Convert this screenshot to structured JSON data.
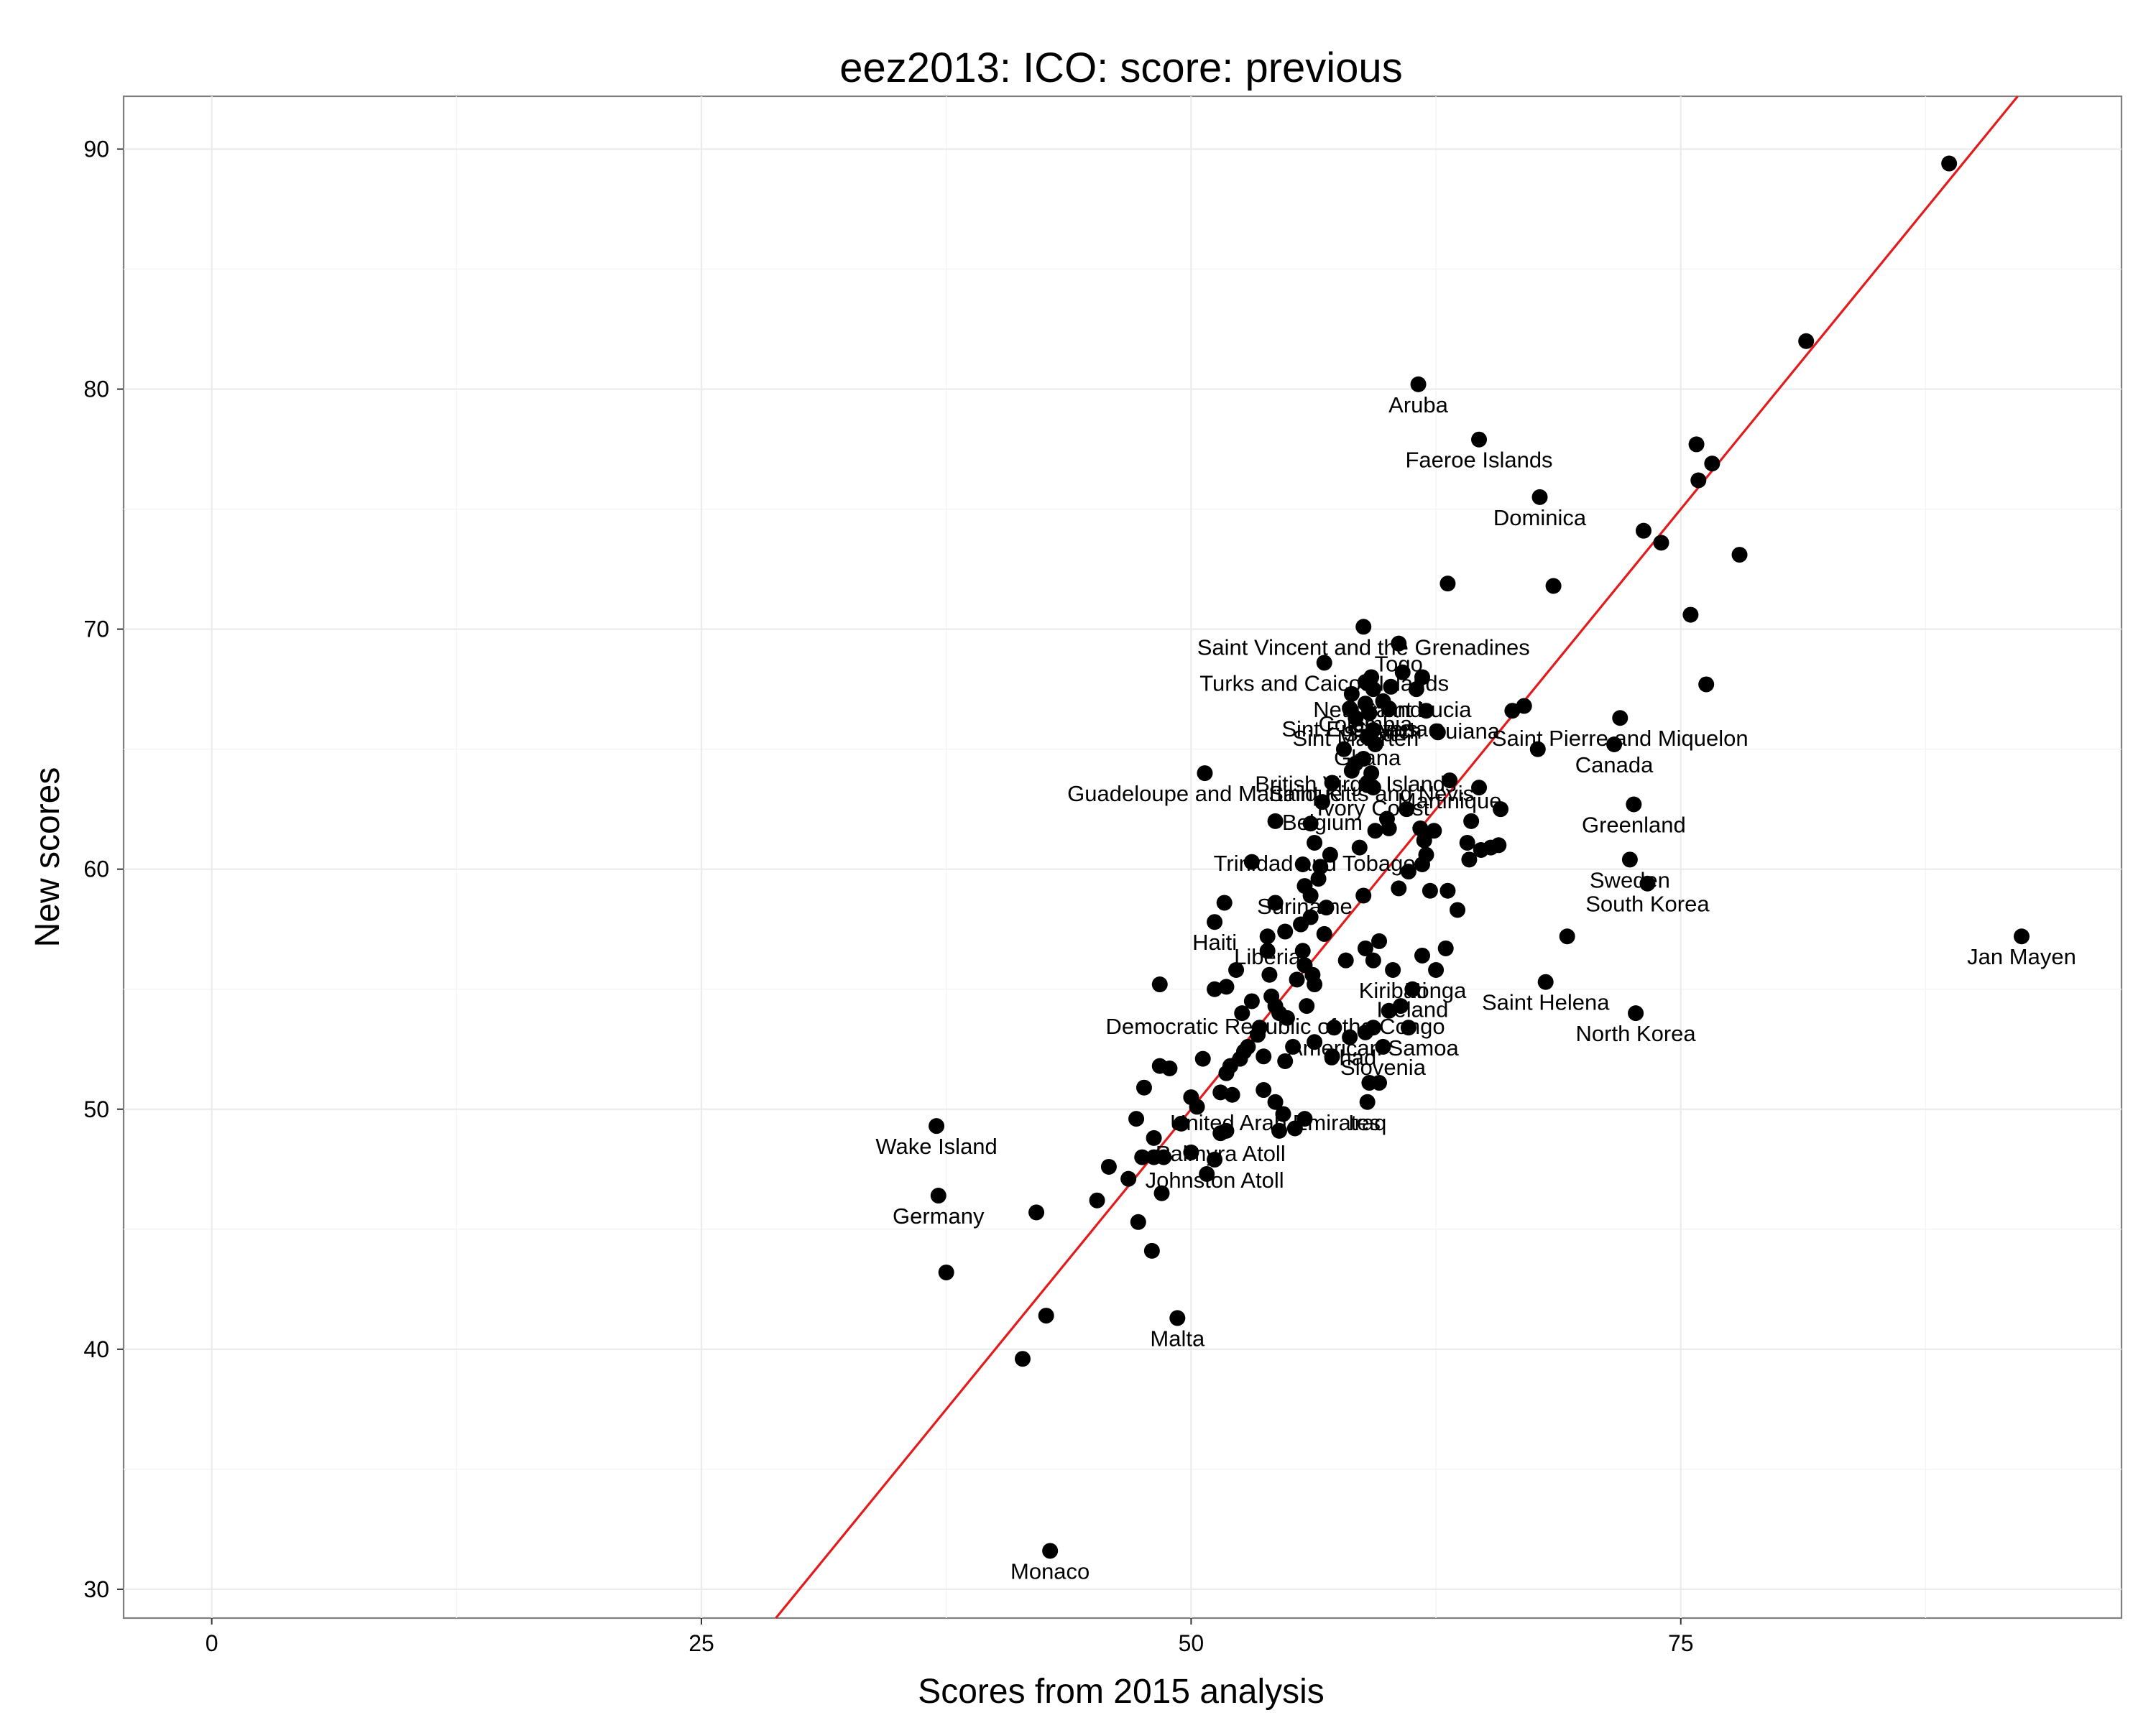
{
  "chart_data": {
    "type": "scatter",
    "title": "eez2013: ICO: score: previous",
    "xlabel": "Scores from 2015 analysis",
    "ylabel": "New scores",
    "xlim": [
      -4.5,
      97.5
    ],
    "ylim": [
      28.8,
      92.2
    ],
    "xticks": [
      0,
      25,
      50,
      75
    ],
    "yticks": [
      30,
      40,
      50,
      60,
      70,
      80,
      90
    ],
    "grid": true,
    "reference_line": {
      "color": "#e41a1c",
      "slope": 1,
      "intercept": 0
    },
    "points": [
      {
        "x": 88.7,
        "y": 89.4
      },
      {
        "x": 81.4,
        "y": 82.0
      },
      {
        "x": 61.6,
        "y": 80.2,
        "label": "Aruba"
      },
      {
        "x": 64.7,
        "y": 77.9,
        "label": "Faeroe Islands"
      },
      {
        "x": 75.8,
        "y": 77.7
      },
      {
        "x": 76.6,
        "y": 76.9
      },
      {
        "x": 75.9,
        "y": 76.2
      },
      {
        "x": 67.8,
        "y": 75.5,
        "label": "Dominica"
      },
      {
        "x": 73.1,
        "y": 74.1
      },
      {
        "x": 74.0,
        "y": 73.6
      },
      {
        "x": 78.0,
        "y": 73.1
      },
      {
        "x": 63.1,
        "y": 71.9
      },
      {
        "x": 68.5,
        "y": 71.8
      },
      {
        "x": 75.5,
        "y": 70.6
      },
      {
        "x": 58.8,
        "y": 70.1,
        "label": "Saint Vincent and the Grenadines"
      },
      {
        "x": 60.6,
        "y": 69.4,
        "label": "Togo"
      },
      {
        "x": 56.8,
        "y": 68.6,
        "label": "Turks and Caicos Islands"
      },
      {
        "x": 60.8,
        "y": 68.2
      },
      {
        "x": 59.2,
        "y": 68.0
      },
      {
        "x": 61.8,
        "y": 68.0
      },
      {
        "x": 58.9,
        "y": 67.8
      },
      {
        "x": 59.3,
        "y": 67.5,
        "label": "Netherlands"
      },
      {
        "x": 60.2,
        "y": 67.6
      },
      {
        "x": 61.5,
        "y": 67.5,
        "label": "Saint Lucia"
      },
      {
        "x": 76.3,
        "y": 67.7
      },
      {
        "x": 58.2,
        "y": 67.3
      },
      {
        "x": 59.8,
        "y": 67.0
      },
      {
        "x": 58.9,
        "y": 66.9,
        "label": "Colombia"
      },
      {
        "x": 60.1,
        "y": 66.7,
        "label": "Guyana"
      },
      {
        "x": 62.0,
        "y": 66.6,
        "label": "French Guiana"
      },
      {
        "x": 58.1,
        "y": 66.7,
        "label": "Sint Eustatius"
      },
      {
        "x": 59.1,
        "y": 66.5,
        "label": "Saba"
      },
      {
        "x": 58.4,
        "y": 66.3,
        "label": "Sint Maarten"
      },
      {
        "x": 66.4,
        "y": 66.6
      },
      {
        "x": 67.0,
        "y": 66.8
      },
      {
        "x": 71.9,
        "y": 66.3,
        "label": "Saint Pierre and Miquelon"
      },
      {
        "x": 59.3,
        "y": 65.8
      },
      {
        "x": 62.6,
        "y": 65.7
      },
      {
        "x": 59.0,
        "y": 65.5,
        "label": "Ghana"
      },
      {
        "x": 59.4,
        "y": 65.2
      },
      {
        "x": 67.7,
        "y": 65.0
      },
      {
        "x": 71.6,
        "y": 65.2,
        "label": "Canada"
      },
      {
        "x": 57.8,
        "y": 65.0
      },
      {
        "x": 58.8,
        "y": 64.6
      },
      {
        "x": 58.4,
        "y": 64.4,
        "label": "British Virgin Islands"
      },
      {
        "x": 50.7,
        "y": 64.0,
        "label": "Guadeloupe and Martinique"
      },
      {
        "x": 58.2,
        "y": 64.1
      },
      {
        "x": 59.2,
        "y": 64.0,
        "label": "Saint Kitts and Nevis"
      },
      {
        "x": 59.0,
        "y": 63.6
      },
      {
        "x": 63.2,
        "y": 63.7,
        "label": "Martinique"
      },
      {
        "x": 59.3,
        "y": 63.4,
        "label": "Ivory Coast"
      },
      {
        "x": 57.2,
        "y": 63.6
      },
      {
        "x": 59.0,
        "y": 63.5
      },
      {
        "x": 64.7,
        "y": 63.4
      },
      {
        "x": 56.7,
        "y": 62.8,
        "label": "Belgium"
      },
      {
        "x": 61.0,
        "y": 62.5
      },
      {
        "x": 65.8,
        "y": 62.5
      },
      {
        "x": 72.6,
        "y": 62.7,
        "label": "Greenland"
      },
      {
        "x": 60.0,
        "y": 62.1
      },
      {
        "x": 64.3,
        "y": 62.0
      },
      {
        "x": 54.3,
        "y": 62.0
      },
      {
        "x": 56.1,
        "y": 61.9
      },
      {
        "x": 59.4,
        "y": 61.6
      },
      {
        "x": 60.1,
        "y": 61.7
      },
      {
        "x": 61.7,
        "y": 61.7
      },
      {
        "x": 62.4,
        "y": 61.6
      },
      {
        "x": 61.9,
        "y": 61.2
      },
      {
        "x": 56.3,
        "y": 61.1,
        "label": "Trinidad and Tobago"
      },
      {
        "x": 58.6,
        "y": 60.9
      },
      {
        "x": 64.1,
        "y": 61.1
      },
      {
        "x": 64.8,
        "y": 60.8
      },
      {
        "x": 65.3,
        "y": 60.9
      },
      {
        "x": 65.7,
        "y": 61.0
      },
      {
        "x": 62.0,
        "y": 60.6
      },
      {
        "x": 61.8,
        "y": 60.2
      },
      {
        "x": 64.2,
        "y": 60.4
      },
      {
        "x": 72.4,
        "y": 60.4,
        "label": "Sweden"
      },
      {
        "x": 57.1,
        "y": 60.6
      },
      {
        "x": 55.7,
        "y": 60.2
      },
      {
        "x": 56.6,
        "y": 60.1
      },
      {
        "x": 53.1,
        "y": 60.3
      },
      {
        "x": 61.1,
        "y": 59.9
      },
      {
        "x": 55.8,
        "y": 59.3,
        "label": "Suriname"
      },
      {
        "x": 56.5,
        "y": 59.6
      },
      {
        "x": 73.3,
        "y": 59.4,
        "label": "South Korea"
      },
      {
        "x": 60.6,
        "y": 59.2
      },
      {
        "x": 62.2,
        "y": 59.1
      },
      {
        "x": 63.1,
        "y": 59.1
      },
      {
        "x": 56.1,
        "y": 58.9
      },
      {
        "x": 58.8,
        "y": 58.9
      },
      {
        "x": 51.7,
        "y": 58.6
      },
      {
        "x": 54.3,
        "y": 58.6
      },
      {
        "x": 56.9,
        "y": 58.4
      },
      {
        "x": 63.6,
        "y": 58.3
      },
      {
        "x": 56.1,
        "y": 58.0
      },
      {
        "x": 51.2,
        "y": 57.8,
        "label": "Haiti"
      },
      {
        "x": 55.6,
        "y": 57.7
      },
      {
        "x": 54.8,
        "y": 57.4
      },
      {
        "x": 56.8,
        "y": 57.3
      },
      {
        "x": 53.9,
        "y": 57.2,
        "label": "Liberia"
      },
      {
        "x": 69.2,
        "y": 57.2
      },
      {
        "x": 92.4,
        "y": 57.2,
        "label": "Jan Mayen"
      },
      {
        "x": 59.6,
        "y": 57.0
      },
      {
        "x": 53.9,
        "y": 56.6
      },
      {
        "x": 55.7,
        "y": 56.6
      },
      {
        "x": 58.9,
        "y": 56.7
      },
      {
        "x": 63.0,
        "y": 56.7
      },
      {
        "x": 61.8,
        "y": 56.4
      },
      {
        "x": 59.3,
        "y": 56.2
      },
      {
        "x": 57.9,
        "y": 56.2
      },
      {
        "x": 62.5,
        "y": 55.8,
        "label": "Tonga"
      },
      {
        "x": 55.8,
        "y": 56.0
      },
      {
        "x": 52.3,
        "y": 55.8
      },
      {
        "x": 54.0,
        "y": 55.6
      },
      {
        "x": 55.4,
        "y": 55.4
      },
      {
        "x": 56.2,
        "y": 55.6
      },
      {
        "x": 60.3,
        "y": 55.8,
        "label": "Kiribati"
      },
      {
        "x": 68.1,
        "y": 55.3,
        "label": "Saint Helena"
      },
      {
        "x": 48.4,
        "y": 55.2
      },
      {
        "x": 51.8,
        "y": 55.1
      },
      {
        "x": 51.2,
        "y": 55.0
      },
      {
        "x": 56.3,
        "y": 55.2
      },
      {
        "x": 61.3,
        "y": 55.0,
        "label": "Iceland"
      },
      {
        "x": 54.1,
        "y": 54.7
      },
      {
        "x": 53.1,
        "y": 54.5
      },
      {
        "x": 54.3,
        "y": 54.3,
        "label": "Democratic Republic of the Congo"
      },
      {
        "x": 55.9,
        "y": 54.3
      },
      {
        "x": 60.1,
        "y": 54.1
      },
      {
        "x": 60.7,
        "y": 54.3
      },
      {
        "x": 72.7,
        "y": 54.0,
        "label": "North Korea"
      },
      {
        "x": 52.6,
        "y": 54.0
      },
      {
        "x": 54.5,
        "y": 54.0
      },
      {
        "x": 54.9,
        "y": 53.8
      },
      {
        "x": 53.5,
        "y": 53.4
      },
      {
        "x": 57.3,
        "y": 53.4
      },
      {
        "x": 59.3,
        "y": 53.4,
        "label": "American Samoa"
      },
      {
        "x": 61.1,
        "y": 53.4
      },
      {
        "x": 58.9,
        "y": 53.2
      },
      {
        "x": 53.4,
        "y": 53.1
      },
      {
        "x": 58.1,
        "y": 53.0,
        "label": "Chad"
      },
      {
        "x": 56.3,
        "y": 52.8
      },
      {
        "x": 52.9,
        "y": 52.6
      },
      {
        "x": 55.2,
        "y": 52.6
      },
      {
        "x": 59.8,
        "y": 52.6,
        "label": "Slovenia"
      },
      {
        "x": 52.7,
        "y": 52.4
      },
      {
        "x": 57.2,
        "y": 52.2
      },
      {
        "x": 50.6,
        "y": 52.1
      },
      {
        "x": 53.7,
        "y": 52.2
      },
      {
        "x": 54.8,
        "y": 52.0
      },
      {
        "x": 52.5,
        "y": 52.1
      },
      {
        "x": 52.0,
        "y": 51.8
      },
      {
        "x": 48.4,
        "y": 51.8
      },
      {
        "x": 48.9,
        "y": 51.7
      },
      {
        "x": 51.8,
        "y": 51.5
      },
      {
        "x": 59.1,
        "y": 51.1
      },
      {
        "x": 59.6,
        "y": 51.1
      },
      {
        "x": 47.6,
        "y": 50.9
      },
      {
        "x": 53.7,
        "y": 50.8
      },
      {
        "x": 51.5,
        "y": 50.7
      },
      {
        "x": 52.1,
        "y": 50.6
      },
      {
        "x": 50.0,
        "y": 50.5
      },
      {
        "x": 54.3,
        "y": 50.3,
        "label": "United Arab Emirates"
      },
      {
        "x": 59.0,
        "y": 50.3,
        "label": "Iraq"
      },
      {
        "x": 50.3,
        "y": 50.1
      },
      {
        "x": 54.7,
        "y": 49.8
      },
      {
        "x": 47.2,
        "y": 49.6
      },
      {
        "x": 55.8,
        "y": 49.6
      },
      {
        "x": 49.5,
        "y": 49.4
      },
      {
        "x": 55.3,
        "y": 49.2
      },
      {
        "x": 54.5,
        "y": 49.1
      },
      {
        "x": 51.8,
        "y": 49.1
      },
      {
        "x": 51.5,
        "y": 49.0,
        "label": "Palmyra Atoll"
      },
      {
        "x": 37.0,
        "y": 49.3,
        "label": "Wake Island"
      },
      {
        "x": 48.1,
        "y": 48.8
      },
      {
        "x": 50.0,
        "y": 48.2
      },
      {
        "x": 47.5,
        "y": 48.0
      },
      {
        "x": 48.1,
        "y": 48.0
      },
      {
        "x": 48.6,
        "y": 48.0
      },
      {
        "x": 51.2,
        "y": 47.9,
        "label": "Johnston Atoll"
      },
      {
        "x": 45.8,
        "y": 47.6
      },
      {
        "x": 50.8,
        "y": 47.3
      },
      {
        "x": 46.8,
        "y": 47.1
      },
      {
        "x": 48.5,
        "y": 46.5
      },
      {
        "x": 37.1,
        "y": 46.4,
        "label": "Germany"
      },
      {
        "x": 45.2,
        "y": 46.2
      },
      {
        "x": 42.1,
        "y": 45.7
      },
      {
        "x": 47.3,
        "y": 45.3
      },
      {
        "x": 48.0,
        "y": 44.1
      },
      {
        "x": 37.5,
        "y": 43.2
      },
      {
        "x": 42.6,
        "y": 41.4
      },
      {
        "x": 49.3,
        "y": 41.3,
        "label": "Malta"
      },
      {
        "x": 41.4,
        "y": 39.6
      },
      {
        "x": 42.8,
        "y": 31.6,
        "label": "Monaco"
      }
    ]
  }
}
